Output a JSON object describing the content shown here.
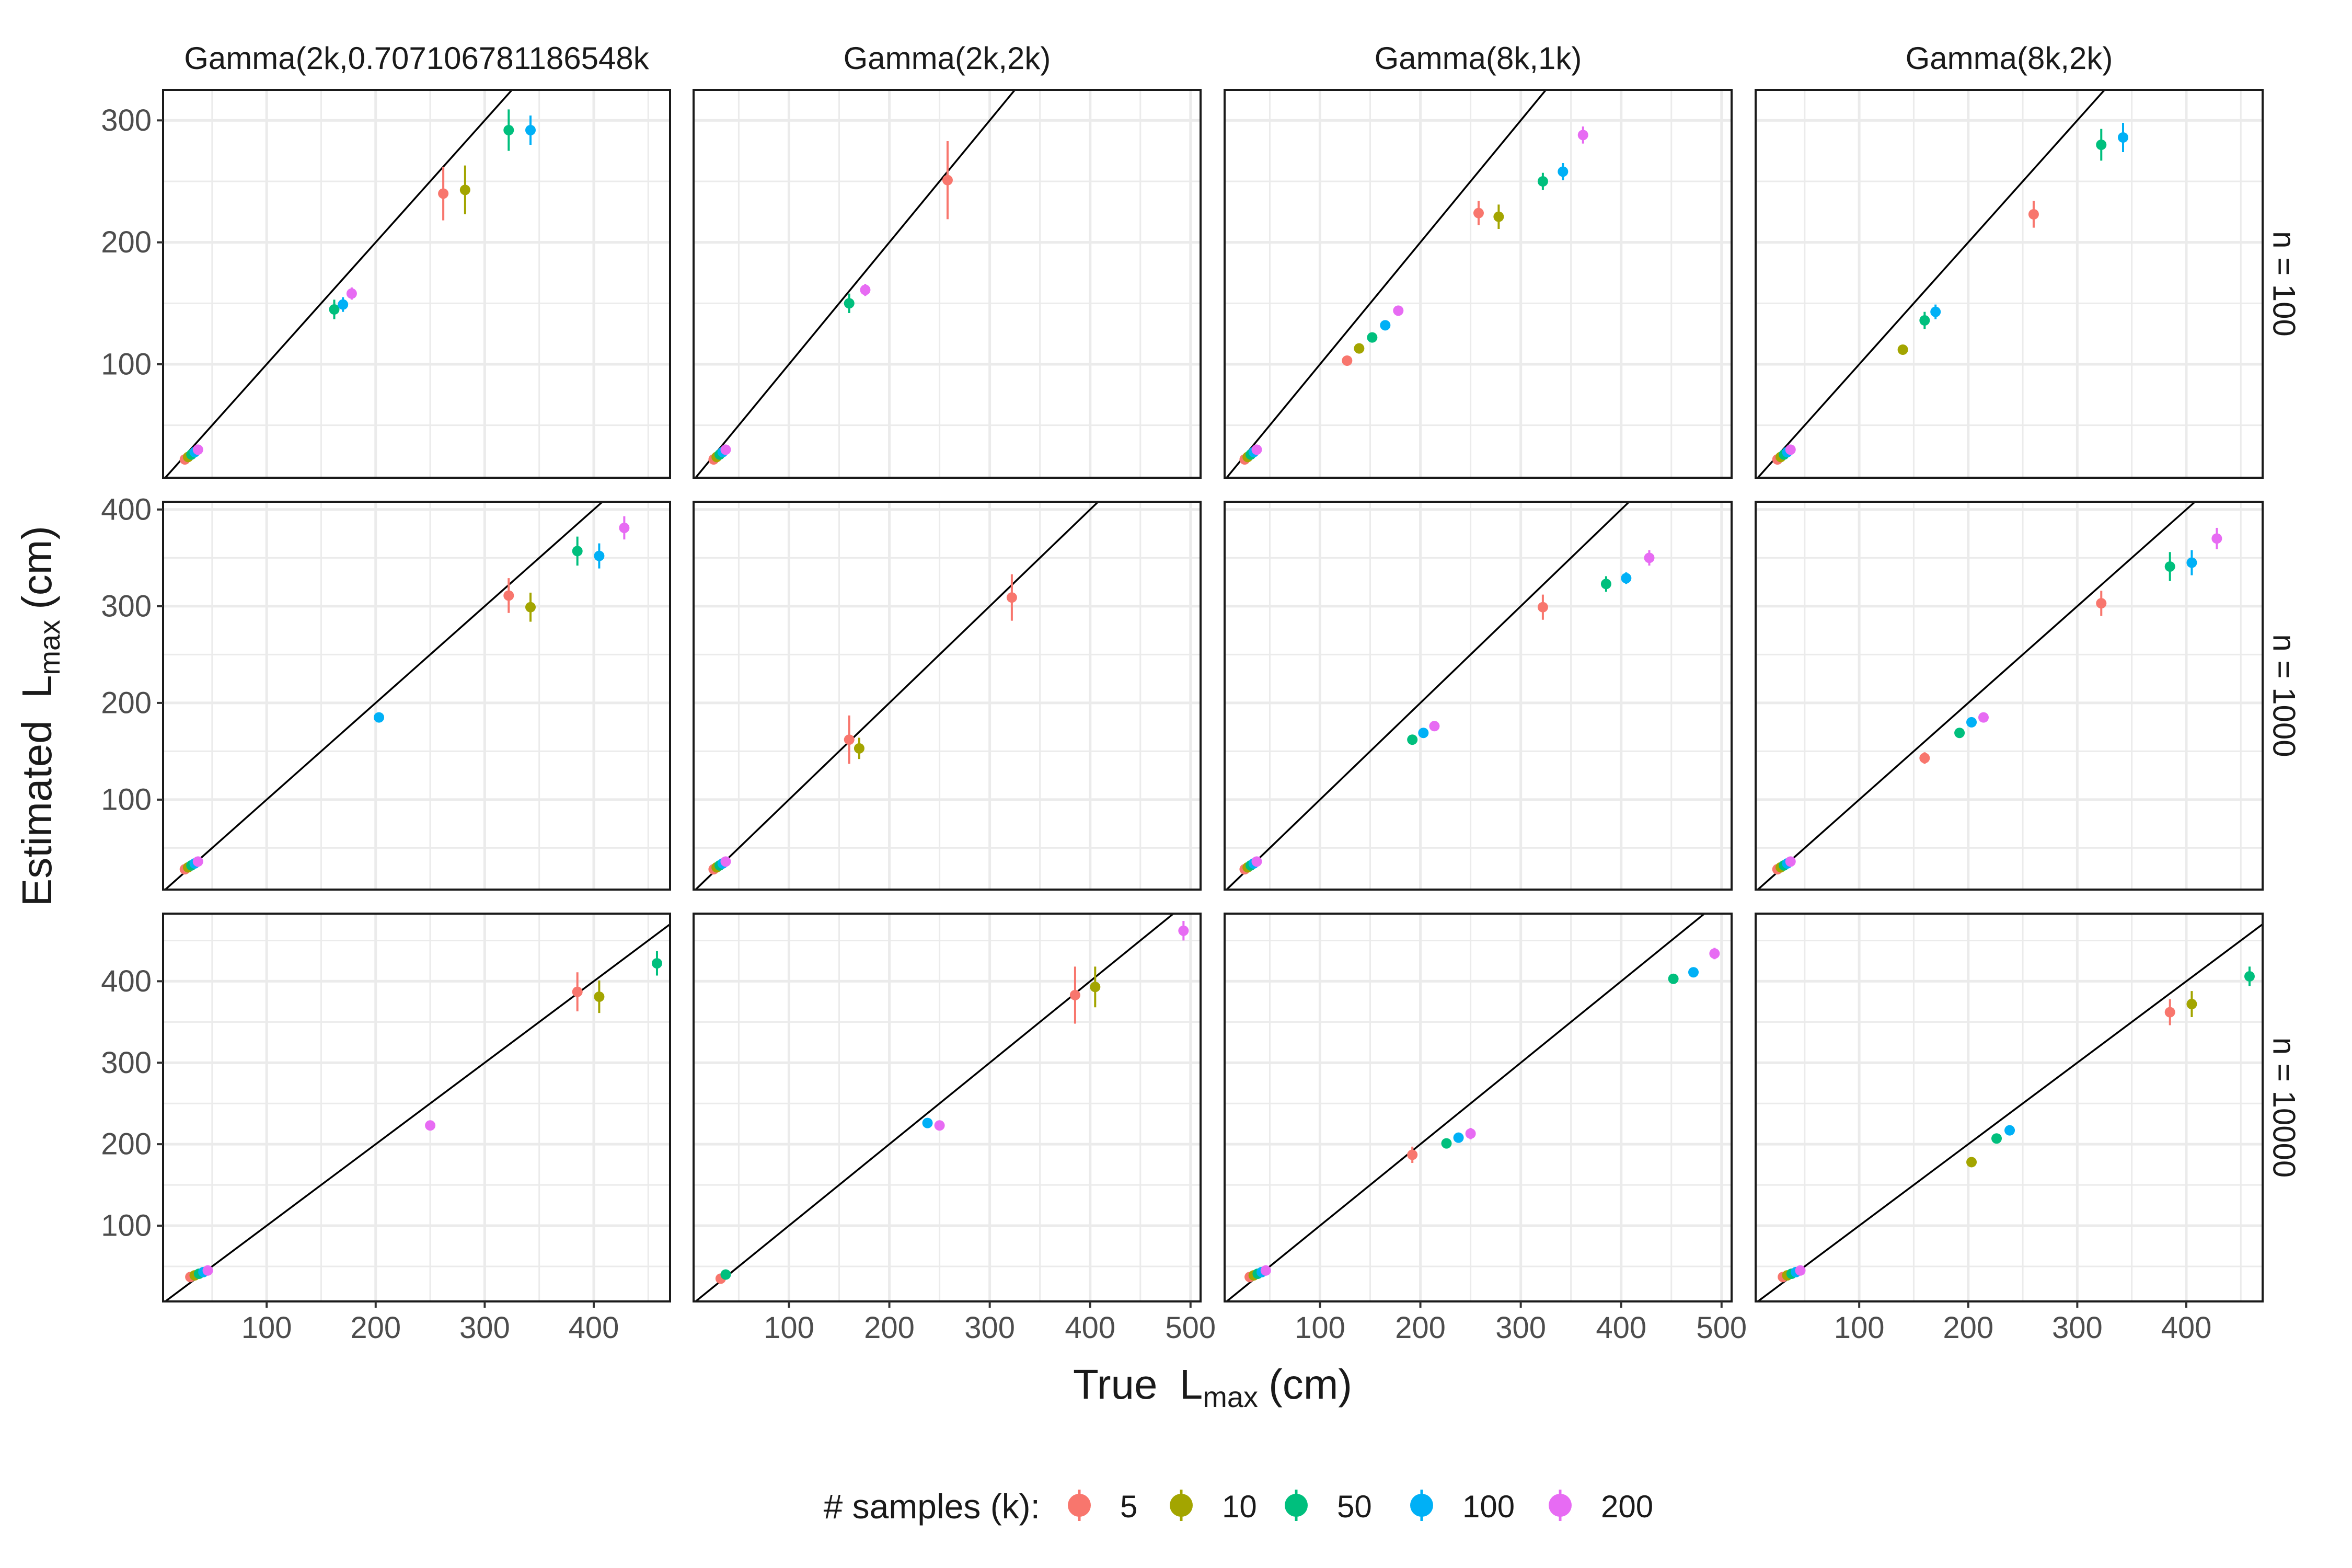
{
  "chart_data": {
    "type": "scatter",
    "title": "",
    "xlabel": {
      "main": "True",
      "var": "L",
      "sub": "max",
      "unit": "(cm)"
    },
    "ylabel": {
      "main": "Estimated",
      "var": "L",
      "sub": "max",
      "unit": "(cm)"
    },
    "columns": [
      "Gamma(2k,0.707106781186548k",
      "Gamma(2k,2k)",
      "Gamma(8k,1k)",
      "Gamma(8k,2k)"
    ],
    "rows": [
      "n = 100",
      "n = 1000",
      "n = 10000"
    ],
    "legend": {
      "title": "# samples (k):",
      "position": "bottom",
      "entries": [
        {
          "label": "5",
          "color": "#F8766D"
        },
        {
          "label": "10",
          "color": "#A3A500"
        },
        {
          "label": "50",
          "color": "#00BF7D"
        },
        {
          "label": "100",
          "color": "#00B0F6"
        },
        {
          "label": "200",
          "color": "#E76BF3"
        }
      ]
    },
    "reference_line": "y = x",
    "grid": true,
    "col_x_axes": [
      {
        "xlim": [
          5,
          470
        ],
        "ticks": [
          "100",
          "200",
          "300",
          "400"
        ]
      },
      {
        "xlim": [
          5,
          510
        ],
        "ticks": [
          "100",
          "200",
          "300",
          "400",
          "500"
        ]
      },
      {
        "xlim": [
          5,
          510
        ],
        "ticks": [
          "100",
          "200",
          "300",
          "400",
          "500"
        ]
      },
      {
        "xlim": [
          5,
          470
        ],
        "ticks": [
          "100",
          "200",
          "300",
          "400"
        ]
      }
    ],
    "row_y_axes": [
      {
        "ylim": [
          7,
          325
        ],
        "ticks": [
          "100",
          "200",
          "300"
        ]
      },
      {
        "ylim": [
          7,
          408
        ],
        "ticks": [
          "100",
          "200",
          "300",
          "400"
        ]
      },
      {
        "ylim": [
          7,
          483
        ],
        "ticks": [
          "100",
          "200",
          "300",
          "400"
        ]
      }
    ],
    "panels": [
      {
        "row": 0,
        "col": 0,
        "points": [
          [
            25,
            22,
            3,
            0
          ],
          [
            28,
            24,
            3,
            1
          ],
          [
            31,
            26,
            3,
            2
          ],
          [
            34,
            28,
            3,
            3
          ],
          [
            37,
            30,
            3,
            4
          ],
          [
            162,
            145,
            8,
            2
          ],
          [
            170,
            149,
            6,
            3
          ],
          [
            178,
            158,
            5,
            4
          ],
          [
            262,
            240,
            22,
            0
          ],
          [
            282,
            243,
            20,
            1
          ],
          [
            322,
            292,
            17,
            2
          ],
          [
            342,
            292,
            12,
            3
          ]
        ]
      },
      {
        "row": 0,
        "col": 1,
        "points": [
          [
            25,
            22,
            3,
            0
          ],
          [
            28,
            24,
            3,
            1
          ],
          [
            31,
            26,
            3,
            2
          ],
          [
            34,
            28,
            3,
            3
          ],
          [
            37,
            30,
            3,
            4
          ],
          [
            160,
            150,
            8,
            2
          ],
          [
            176,
            161,
            5,
            4
          ],
          [
            258,
            251,
            32,
            0
          ]
        ]
      },
      {
        "row": 0,
        "col": 2,
        "points": [
          [
            25,
            22,
            3,
            0
          ],
          [
            28,
            24,
            3,
            1
          ],
          [
            31,
            26,
            3,
            2
          ],
          [
            34,
            28,
            3,
            3
          ],
          [
            37,
            30,
            3,
            4
          ],
          [
            127,
            103,
            4,
            0
          ],
          [
            139,
            113,
            4,
            1
          ],
          [
            152,
            122,
            4,
            2
          ],
          [
            165,
            132,
            4,
            3
          ],
          [
            178,
            144,
            4,
            4
          ],
          [
            258,
            224,
            10,
            0
          ],
          [
            278,
            221,
            10,
            1
          ],
          [
            322,
            250,
            7,
            2
          ],
          [
            342,
            258,
            7,
            3
          ],
          [
            362,
            288,
            7,
            4
          ]
        ]
      },
      {
        "row": 0,
        "col": 3,
        "points": [
          [
            25,
            22,
            3,
            0
          ],
          [
            28,
            24,
            3,
            1
          ],
          [
            31,
            26,
            3,
            2
          ],
          [
            34,
            28,
            3,
            3
          ],
          [
            37,
            30,
            3,
            4
          ],
          [
            140,
            112,
            4,
            1
          ],
          [
            160,
            136,
            7,
            2
          ],
          [
            170,
            143,
            6,
            3
          ],
          [
            260,
            223,
            11,
            0
          ],
          [
            322,
            280,
            13,
            2
          ],
          [
            342,
            286,
            12,
            3
          ]
        ]
      },
      {
        "row": 1,
        "col": 0,
        "points": [
          [
            25,
            28,
            4,
            0
          ],
          [
            28,
            30,
            4,
            1
          ],
          [
            31,
            32,
            4,
            2
          ],
          [
            34,
            34,
            4,
            3
          ],
          [
            37,
            36,
            4,
            4
          ],
          [
            203,
            185,
            5,
            3
          ],
          [
            322,
            311,
            18,
            0
          ],
          [
            342,
            299,
            15,
            1
          ],
          [
            385,
            357,
            15,
            2
          ],
          [
            405,
            352,
            13,
            3
          ],
          [
            428,
            381,
            12,
            4
          ]
        ]
      },
      {
        "row": 1,
        "col": 1,
        "points": [
          [
            25,
            28,
            4,
            0
          ],
          [
            28,
            30,
            4,
            1
          ],
          [
            31,
            32,
            4,
            2
          ],
          [
            34,
            34,
            4,
            3
          ],
          [
            37,
            36,
            4,
            4
          ],
          [
            160,
            162,
            25,
            0
          ],
          [
            170,
            153,
            11,
            1
          ],
          [
            322,
            309,
            24,
            0
          ]
        ]
      },
      {
        "row": 1,
        "col": 2,
        "points": [
          [
            25,
            28,
            4,
            0
          ],
          [
            28,
            30,
            4,
            1
          ],
          [
            31,
            32,
            4,
            2
          ],
          [
            34,
            34,
            4,
            3
          ],
          [
            37,
            36,
            4,
            4
          ],
          [
            192,
            162,
            5,
            2
          ],
          [
            203,
            169,
            5,
            3
          ],
          [
            214,
            176,
            5,
            4
          ],
          [
            322,
            299,
            13,
            0
          ],
          [
            385,
            323,
            8,
            2
          ],
          [
            405,
            329,
            6,
            3
          ],
          [
            428,
            350,
            8,
            4
          ]
        ]
      },
      {
        "row": 1,
        "col": 3,
        "points": [
          [
            25,
            28,
            4,
            0
          ],
          [
            28,
            30,
            4,
            1
          ],
          [
            31,
            32,
            4,
            2
          ],
          [
            34,
            34,
            4,
            3
          ],
          [
            37,
            36,
            4,
            4
          ],
          [
            160,
            143,
            6,
            0
          ],
          [
            192,
            169,
            5,
            2
          ],
          [
            203,
            180,
            5,
            3
          ],
          [
            214,
            185,
            5,
            4
          ],
          [
            322,
            303,
            13,
            0
          ],
          [
            385,
            341,
            15,
            2
          ],
          [
            405,
            345,
            13,
            3
          ],
          [
            428,
            370,
            11,
            4
          ]
        ]
      },
      {
        "row": 2,
        "col": 0,
        "points": [
          [
            30,
            37,
            5,
            0
          ],
          [
            34,
            39,
            5,
            1
          ],
          [
            38,
            41,
            5,
            2
          ],
          [
            42,
            43,
            5,
            3
          ],
          [
            46,
            45,
            5,
            4
          ],
          [
            250,
            223,
            6,
            4
          ],
          [
            385,
            387,
            24,
            0
          ],
          [
            405,
            381,
            20,
            1
          ],
          [
            458,
            422,
            15,
            2
          ]
        ]
      },
      {
        "row": 2,
        "col": 1,
        "points": [
          [
            32,
            35,
            5,
            0
          ],
          [
            37,
            40,
            5,
            2
          ],
          [
            238,
            226,
            6,
            3
          ],
          [
            250,
            223,
            6,
            4
          ],
          [
            385,
            383,
            35,
            0
          ],
          [
            405,
            393,
            25,
            1
          ],
          [
            493,
            462,
            12,
            4
          ]
        ]
      },
      {
        "row": 2,
        "col": 2,
        "points": [
          [
            30,
            37,
            5,
            0
          ],
          [
            34,
            39,
            5,
            1
          ],
          [
            38,
            41,
            5,
            2
          ],
          [
            42,
            43,
            5,
            3
          ],
          [
            46,
            45,
            5,
            4
          ],
          [
            192,
            187,
            10,
            0
          ],
          [
            226,
            201,
            6,
            2
          ],
          [
            238,
            208,
            6,
            3
          ],
          [
            250,
            213,
            7,
            4
          ],
          [
            452,
            403,
            6,
            2
          ],
          [
            472,
            411,
            6,
            3
          ],
          [
            493,
            434,
            7,
            4
          ]
        ]
      },
      {
        "row": 2,
        "col": 3,
        "points": [
          [
            30,
            37,
            5,
            0
          ],
          [
            34,
            39,
            5,
            1
          ],
          [
            38,
            41,
            5,
            2
          ],
          [
            42,
            43,
            5,
            3
          ],
          [
            46,
            45,
            5,
            4
          ],
          [
            203,
            178,
            6,
            1
          ],
          [
            226,
            207,
            6,
            2
          ],
          [
            238,
            217,
            6,
            3
          ],
          [
            385,
            362,
            16,
            0
          ],
          [
            405,
            372,
            16,
            1
          ],
          [
            458,
            406,
            12,
            2
          ]
        ]
      }
    ]
  }
}
